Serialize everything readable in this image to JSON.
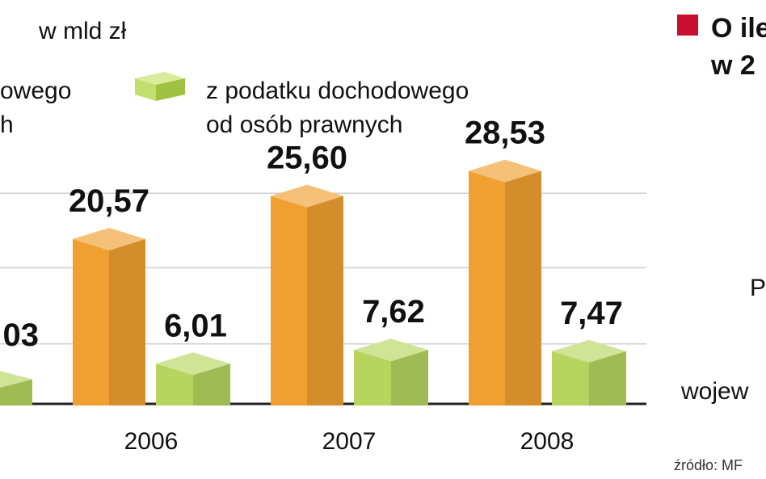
{
  "header": {
    "unit_prefix": "w",
    "unit": "w mld zł"
  },
  "legend": [
    {
      "line1": "owego",
      "line2": "h",
      "color": "#f0a030"
    },
    {
      "line1": "z podatku dochodowego",
      "line2": "od osób prawnych",
      "color": "#b6d45e"
    }
  ],
  "side_panel": {
    "title_line1": "O ile",
    "title_line2": "w 2",
    "marker_color": "#c8102e",
    "label_p": "P",
    "label_woj": "wojew"
  },
  "source": "źródło: MF",
  "chart_data": {
    "type": "bar",
    "categories": [
      "",
      "2006",
      "2007",
      "2008"
    ],
    "series": [
      {
        "values": [
          null,
          20.57,
          25.6,
          28.53
        ],
        "color": "#f0a030"
      },
      {
        "name": "z podatku dochodowego od osób prawnych",
        "values": [
          null,
          6.01,
          7.62,
          7.47
        ],
        "color": "#b6d45e"
      }
    ],
    "value_labels": {
      "orange": [
        "",
        "20,57",
        "25,60",
        "28,53"
      ],
      "green": [
        "03",
        "6,01",
        "7,62",
        "7,47"
      ]
    },
    "partial_green_value": 4.0,
    "ylim": [
      0,
      30
    ],
    "grid": true,
    "legend_position": "top"
  }
}
